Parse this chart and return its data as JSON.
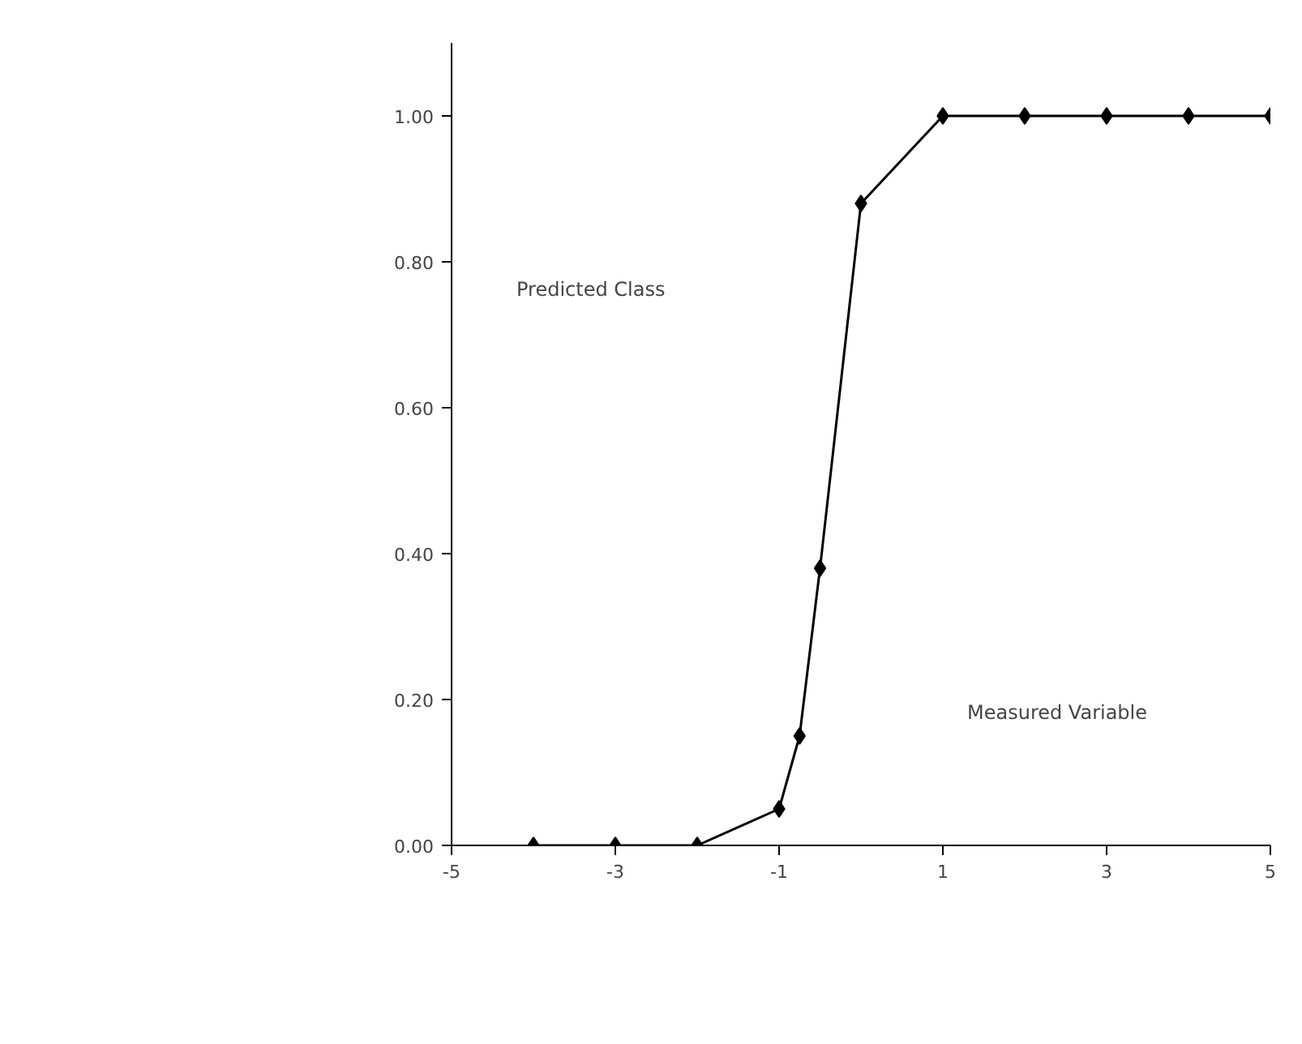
{
  "chart_data": {
    "type": "line",
    "xlabel": "Measured Variable",
    "ylabel": "Predicted Class",
    "x": [
      -4,
      -3,
      -2,
      -1,
      -0.75,
      -0.5,
      0,
      1,
      2,
      3,
      4,
      5
    ],
    "series": [
      {
        "color": "#000000",
        "values": [
          0,
          0,
          0,
          0.05,
          0.15,
          0.38,
          0.88,
          1,
          1,
          1,
          1,
          1
        ]
      }
    ],
    "xlim": [
      -5,
      5
    ],
    "ylim": [
      0,
      1.1
    ],
    "xticks": [
      -5,
      -3,
      -1,
      1,
      3,
      5
    ],
    "yticks": [
      {
        "value": 0,
        "label": "0.00"
      },
      {
        "value": 0.2,
        "label": "0.20"
      },
      {
        "value": 0.4,
        "label": "0.40"
      },
      {
        "value": 0.6,
        "label": "0.60"
      },
      {
        "value": 0.8,
        "label": "0.80"
      },
      {
        "value": 1,
        "label": "1.00"
      }
    ],
    "grid": false,
    "marker": "diamond",
    "line_style": "solid"
  }
}
